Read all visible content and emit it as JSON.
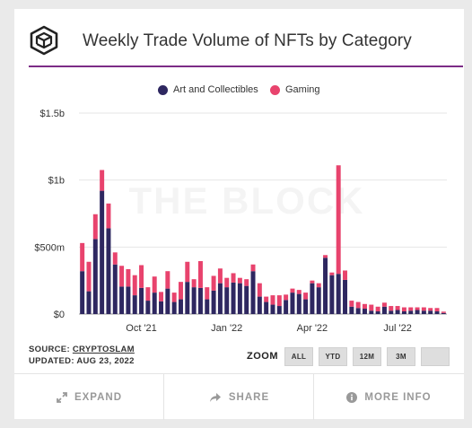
{
  "header": {
    "title": "Weekly Trade Volume of NFTs by Category"
  },
  "legend": [
    {
      "label": "Art and Collectibles",
      "color": "#2e2760"
    },
    {
      "label": "Gaming",
      "color": "#e8436d"
    }
  ],
  "watermark": "THE BLOCK",
  "source": {
    "prefix": "SOURCE: ",
    "name": "CRYPTOSLAM",
    "updated": "UPDATED: AUG 23, 2022"
  },
  "zoom": {
    "label": "ZOOM",
    "buttons": [
      "ALL",
      "YTD",
      "12M",
      "3M",
      ""
    ]
  },
  "footer": {
    "expand": "EXPAND",
    "share": "SHARE",
    "more_info": "MORE INFO"
  },
  "chart_data": {
    "type": "bar",
    "stacked": true,
    "ylim": [
      0,
      1500
    ],
    "yunit": "millions USD",
    "yticks": [
      {
        "value": 0,
        "label": "$0"
      },
      {
        "value": 500,
        "label": "$500m"
      },
      {
        "value": 1000,
        "label": "$1b"
      },
      {
        "value": 1500,
        "label": "$1.5b"
      }
    ],
    "xticks": [
      {
        "index": 9,
        "label": "Oct '21"
      },
      {
        "index": 22,
        "label": "Jan '22"
      },
      {
        "index": 35,
        "label": "Apr '22"
      },
      {
        "index": 48,
        "label": "Jul '22"
      }
    ],
    "grid": true,
    "legend_position": "top",
    "series": [
      {
        "name": "Art and Collectibles",
        "color": "#2e2760",
        "values": [
          320,
          170,
          560,
          920,
          640,
          370,
          205,
          205,
          140,
          195,
          100,
          160,
          95,
          190,
          90,
          110,
          240,
          200,
          195,
          110,
          175,
          230,
          200,
          235,
          230,
          210,
          320,
          130,
          90,
          70,
          60,
          105,
          160,
          150,
          110,
          230,
          200,
          420,
          290,
          300,
          255,
          55,
          45,
          40,
          25,
          20,
          55,
          25,
          30,
          20,
          25,
          30,
          25,
          25,
          20,
          8
        ]
      },
      {
        "name": "Gaming",
        "color": "#e8436d",
        "values": [
          210,
          220,
          185,
          155,
          185,
          90,
          155,
          130,
          150,
          170,
          100,
          120,
          70,
          130,
          70,
          130,
          150,
          60,
          200,
          90,
          110,
          110,
          70,
          70,
          40,
          50,
          50,
          100,
          40,
          70,
          80,
          40,
          30,
          30,
          50,
          20,
          30,
          20,
          20,
          810,
          70,
          45,
          45,
          35,
          45,
          35,
          30,
          35,
          30,
          30,
          25,
          20,
          25,
          20,
          25,
          10
        ]
      }
    ]
  }
}
